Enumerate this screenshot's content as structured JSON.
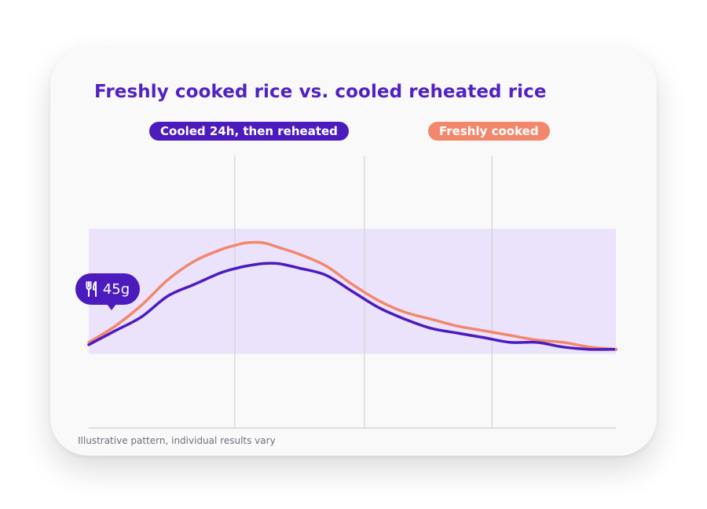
{
  "chart_data": {
    "type": "line",
    "title": "Freshly cooked rice vs. cooled reheated rice",
    "xlabel": "",
    "ylabel": "",
    "x": [
      0,
      0.05,
      0.1,
      0.15,
      0.2,
      0.25,
      0.28,
      0.3,
      0.33,
      0.36,
      0.4,
      0.45,
      0.5,
      0.55,
      0.6,
      0.65,
      0.7,
      0.75,
      0.8,
      0.85,
      0.9,
      0.95,
      1
    ],
    "xlim": [
      0,
      1
    ],
    "ylim": [
      0,
      1
    ],
    "grid": true,
    "target_range": [
      0.32,
      0.86
    ],
    "series": [
      {
        "name": "Cooled 24h, then reheated",
        "color": "#4b1bbd",
        "values": [
          0.36,
          0.42,
          0.48,
          0.57,
          0.62,
          0.67,
          0.69,
          0.7,
          0.71,
          0.71,
          0.69,
          0.66,
          0.59,
          0.52,
          0.47,
          0.43,
          0.41,
          0.39,
          0.37,
          0.37,
          0.35,
          0.34,
          0.34
        ]
      },
      {
        "name": "Freshly cooked",
        "color": "#f2876c",
        "values": [
          0.37,
          0.44,
          0.53,
          0.64,
          0.72,
          0.77,
          0.79,
          0.8,
          0.8,
          0.78,
          0.75,
          0.7,
          0.62,
          0.55,
          0.5,
          0.47,
          0.44,
          0.42,
          0.4,
          0.38,
          0.37,
          0.35,
          0.34
        ]
      }
    ],
    "legend": {
      "placement": "top",
      "entries": [
        "Cooled 24h, then reheated",
        "Freshly cooked"
      ]
    }
  },
  "meal_marker": {
    "icon": "fork-knife-icon",
    "label": "45g"
  },
  "footnote": "Illustrative pattern, individual results vary"
}
